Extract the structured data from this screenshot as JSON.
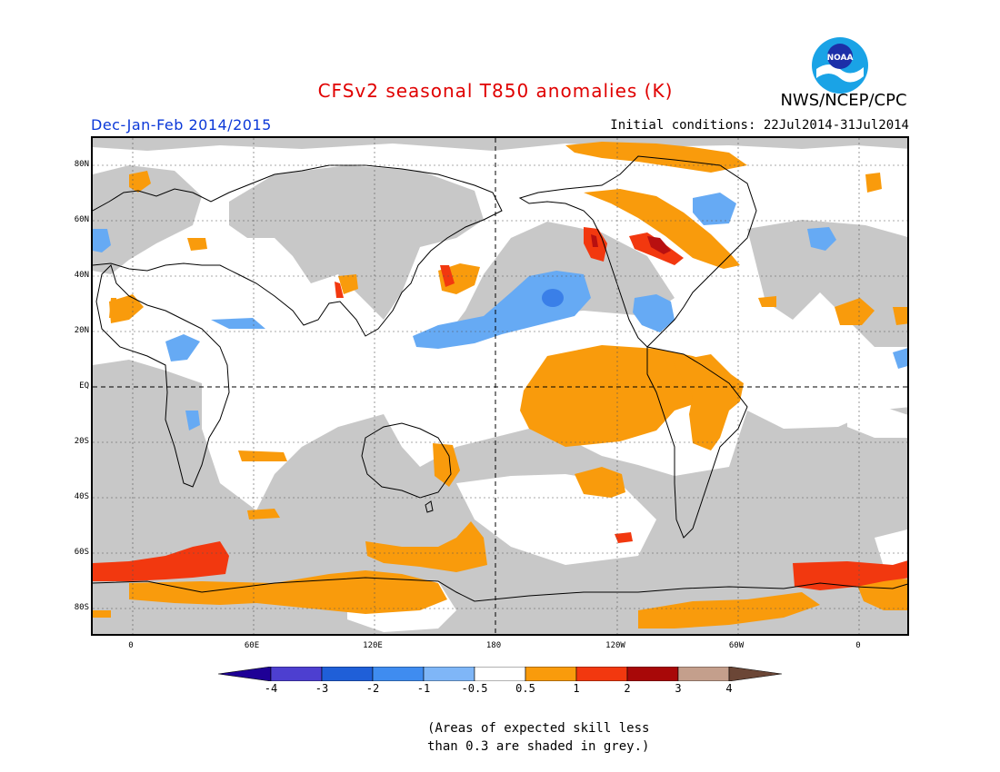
{
  "header": {
    "title": "CFSv2 seasonal T850 anomalies (K)",
    "organization": "NWS/NCEP/CPC",
    "logo_text": "NOAA",
    "season": "Dec-Jan-Feb 2014/2015",
    "initial_conditions": "Initial conditions: 22Jul2014-31Jul2014"
  },
  "map": {
    "projection": "cylindrical equidistant",
    "lat_labels": [
      "80N",
      "60N",
      "40N",
      "20N",
      "EQ",
      "20S",
      "40S",
      "60S",
      "80S"
    ],
    "lon_labels": [
      "0",
      "60E",
      "120E",
      "180",
      "120W",
      "60W",
      "0"
    ],
    "reference_lines": [
      "equator (dashed)",
      "180 meridian (dashed)"
    ],
    "grid": "dotted"
  },
  "colorbar": {
    "labels": [
      "-4",
      "-3",
      "-2",
      "-1",
      "-0.5",
      "0.5",
      "1",
      "2",
      "3",
      "4"
    ],
    "colors": [
      "#1e0096",
      "#4d3fd0",
      "#1f5fd8",
      "#3f8cf0",
      "#7fb6f7",
      "#ffffff",
      "#f99b0c",
      "#f2380f",
      "#a80808",
      "#c49f8c",
      "#6b4636"
    ]
  },
  "anomaly_colors": {
    "skill_grey": "#c8c8c8",
    "light_blue": "#66aaf4",
    "mid_blue": "#3a7fe8",
    "orange": "#f99b0c",
    "red_orange": "#f2380f",
    "dark_red": "#b81010"
  },
  "footnote": {
    "line1": "(Areas of expected skill less",
    "line2": "than 0.3 are shaded in grey.)"
  }
}
